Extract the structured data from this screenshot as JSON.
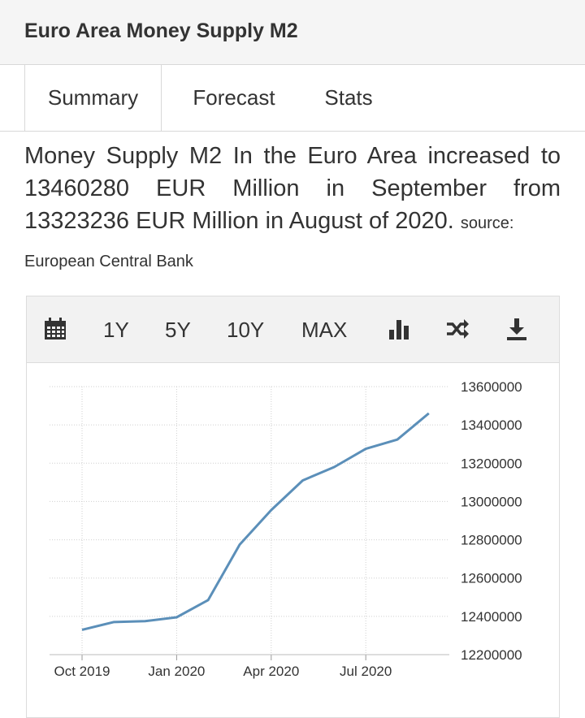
{
  "header": {
    "title": "Euro Area Money Supply M2"
  },
  "tabs": [
    {
      "label": "Summary"
    },
    {
      "label": "Forecast"
    },
    {
      "label": "Stats"
    }
  ],
  "summary": {
    "text": "Money Supply M2 In the Euro Area increased to 13460280 EUR Million in September from 13323236 EUR Million in August of 2020.",
    "source_label": "source:",
    "source_name": "European Central Bank"
  },
  "toolbar": {
    "calendar_icon": "calendar-icon",
    "ranges": [
      "1Y",
      "5Y",
      "10Y",
      "MAX"
    ],
    "chart_type_icon": "bar-chart-icon",
    "compare_icon": "shuffle-icon",
    "download_icon": "download-icon"
  },
  "chart_data": {
    "type": "line",
    "x": [
      "2019-10",
      "2019-11",
      "2019-12",
      "2020-01",
      "2020-02",
      "2020-03",
      "2020-04",
      "2020-05",
      "2020-06",
      "2020-07",
      "2020-08",
      "2020-09"
    ],
    "series": [
      {
        "values": [
          12330000,
          12370000,
          12375000,
          12395000,
          12485000,
          12775000,
          12955000,
          13110000,
          13180000,
          13275000,
          13323236,
          13460280
        ],
        "color": "#5b8fb9"
      }
    ],
    "x_tick_labels": [
      "Oct 2019",
      "Jan 2020",
      "Apr 2020",
      "Jul 2020"
    ],
    "y_tick_labels": [
      "13600000",
      "13400000",
      "13200000",
      "13000000",
      "12800000",
      "12600000",
      "12400000",
      "12200000"
    ],
    "ylim": [
      12200000,
      13600000
    ],
    "y_axis_position": "right",
    "grid": true,
    "title": "",
    "xlabel": "",
    "ylabel": ""
  }
}
